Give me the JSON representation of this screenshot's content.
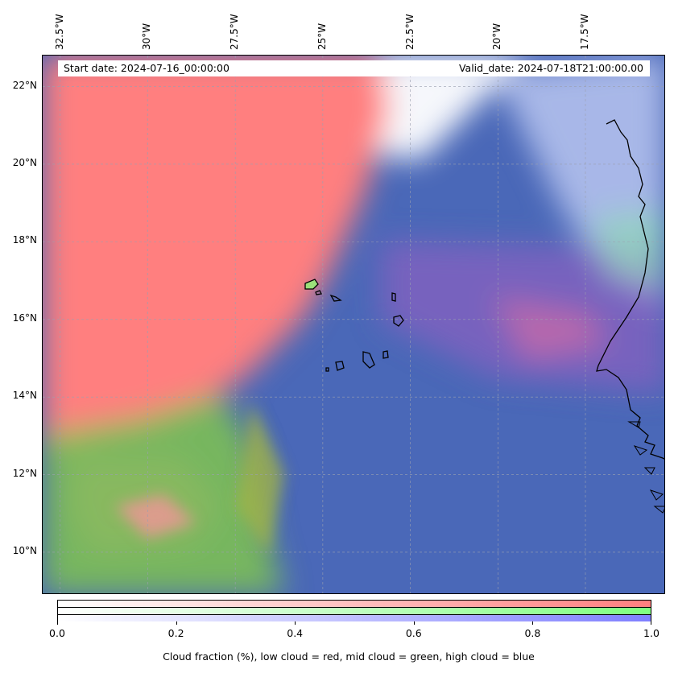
{
  "header": {
    "start_date": "Start date: 2024-07-16_00:00:00",
    "valid_date": "Valid_date: 2024-07-18T21:00:00.00"
  },
  "map": {
    "lon_min": -33.0,
    "lon_max": -15.2,
    "lat_min": 8.9,
    "lat_max": 22.8,
    "longitude_labels": [
      "32.5°W",
      "30°W",
      "27.5°W",
      "25°W",
      "22.5°W",
      "20°W",
      "17.5°W"
    ],
    "longitude_values": [
      -32.5,
      -30,
      -27.5,
      -25,
      -22.5,
      -20,
      -17.5
    ],
    "latitude_labels": [
      "22°N",
      "20°N",
      "18°N",
      "16°N",
      "14°N",
      "12°N",
      "10°N"
    ],
    "latitude_values": [
      22,
      20,
      18,
      16,
      14,
      12,
      10
    ],
    "gridlines": "dashed",
    "layers": {
      "low_cloud_color": "#ff7f7f",
      "mid_cloud_color": "#7fdc5a",
      "high_cloud_color": "#4a68b8"
    }
  },
  "colorbar": {
    "ticks": [
      "0.0",
      "0.2",
      "0.4",
      "0.6",
      "0.8",
      "1.0"
    ],
    "tick_values": [
      0.0,
      0.2,
      0.4,
      0.6,
      0.8,
      1.0
    ],
    "label": "Cloud fraction (%), low cloud = red, mid cloud = green, high cloud = blue",
    "red": "#ff7f7f",
    "green": "#7fff7f",
    "blue": "#7f7fff"
  }
}
